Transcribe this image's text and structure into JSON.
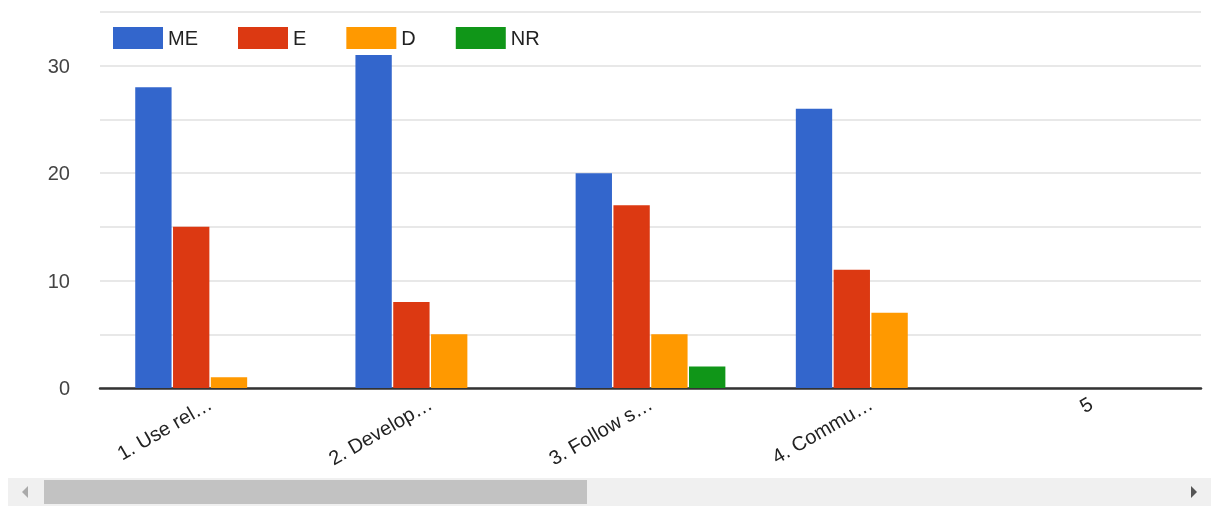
{
  "chart_data": {
    "type": "bar",
    "categories": [
      "1. Use rel…",
      "2. Develop…",
      "3. Follow s…",
      "4. Commu…",
      "5"
    ],
    "series": [
      {
        "name": "ME",
        "color": "#3366cc",
        "values": [
          28,
          31,
          20,
          26,
          null
        ]
      },
      {
        "name": "E",
        "color": "#dc3912",
        "values": [
          15,
          8,
          17,
          11,
          null
        ]
      },
      {
        "name": "D",
        "color": "#ff9900",
        "values": [
          1,
          5,
          5,
          7,
          null
        ]
      },
      {
        "name": "NR",
        "color": "#109618",
        "values": [
          0,
          0,
          2,
          0,
          null
        ]
      }
    ],
    "ylim": [
      0,
      35
    ],
    "yticks": [
      0,
      {
        "value": 5,
        "label": null
      },
      10,
      {
        "value": 15,
        "label": null
      },
      20,
      {
        "value": 25,
        "label": null
      },
      30,
      {
        "value": 35,
        "label": null
      }
    ],
    "grid": "y",
    "legend": "top left"
  }
}
